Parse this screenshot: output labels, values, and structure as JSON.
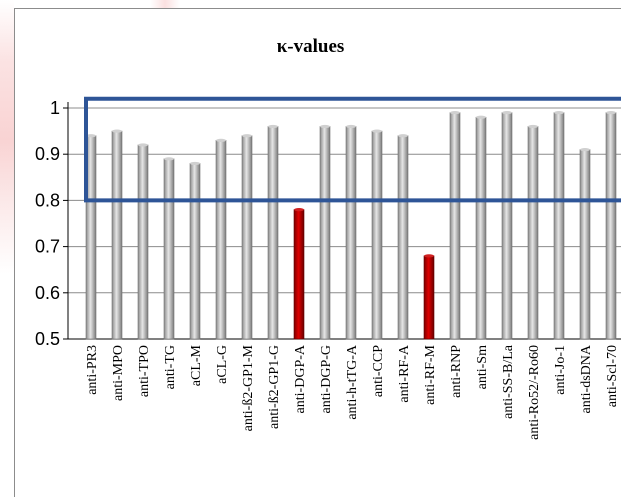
{
  "chart_data": {
    "type": "bar",
    "title": "κ-values",
    "xlabel": "",
    "ylabel": "",
    "ylim": [
      0.5,
      1.0
    ],
    "yticks": [
      "0.5",
      "0.6",
      "0.7",
      "0.8",
      "0.9",
      "1"
    ],
    "grid": true,
    "categories": [
      "anti-PR3",
      "anti-MPO",
      "anti-TPO",
      "anti-TG",
      "aCL-M",
      "aCL-G",
      "anti-ß2-GP1-M",
      "anti-ß2-GP1-G",
      "anti-DGP-A",
      "anti-DGP-G",
      "anti-h-tTG-A",
      "anti-CCP",
      "anti-RF-A",
      "anti-RF-M",
      "anti-RNP",
      "anti-Sm",
      "anti-SS-B/La",
      "anti-Ro52/-Ro60",
      "anti-Jo-1",
      "anti-dsDNA",
      "anti-Scl-70"
    ],
    "values": [
      0.94,
      0.95,
      0.92,
      0.89,
      0.88,
      0.93,
      0.94,
      0.96,
      0.78,
      0.96,
      0.96,
      0.95,
      0.94,
      0.68,
      0.99,
      0.98,
      0.99,
      0.96,
      0.99,
      0.91,
      0.99
    ],
    "highlighted": [
      "anti-DGP-A",
      "anti-RF-M"
    ],
    "reference_band": [
      0.8,
      1.02
    ],
    "colors": {
      "bar": "#b8b8b8",
      "bar_highlight": "#c00000",
      "band": "#2e5597",
      "grid": "#8c8c8c"
    }
  }
}
